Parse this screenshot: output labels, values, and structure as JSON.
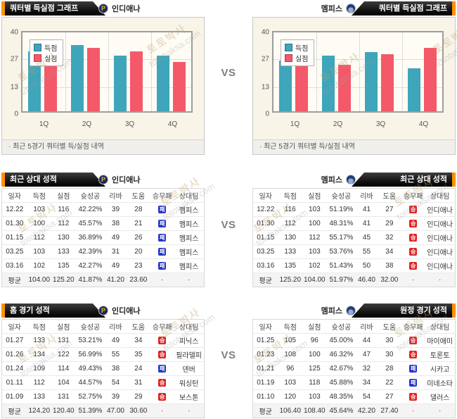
{
  "vs_label": "VS",
  "watermark": {
    "brand": "토토박사",
    "domain": "totobaksa.com"
  },
  "teams": {
    "left": {
      "name": "인디애나",
      "logo_letter": "P"
    },
    "right": {
      "name": "멤피스"
    }
  },
  "sections": {
    "charts": {
      "left_title": "쿼터별 득실점 그래프",
      "right_title": "쿼터별 득실점 그래프"
    },
    "recent": {
      "left_title": "최근 상대 성적",
      "right_title": "최근 상대 성적"
    },
    "homeaway": {
      "left_title": "홈 경기 성적",
      "right_title": "원정 경기 성적"
    }
  },
  "chart_data": [
    {
      "type": "bar",
      "team": "인디애나",
      "title": "쿼터별 득실점 그래프",
      "caption": "· 최근 5경기 쿼터별 득/실점 내역",
      "categories": [
        "1Q",
        "2Q",
        "3Q",
        "4Q"
      ],
      "series": [
        {
          "name": "득점",
          "color": "#3fa5ba",
          "values": [
            29.4,
            32.4,
            27.4,
            27.4
          ]
        },
        {
          "name": "실점",
          "color": "#f4596a",
          "values": [
            31.4,
            31.2,
            29.2,
            24.2
          ]
        }
      ],
      "ylim": [
        0,
        40
      ],
      "yticks": [
        0,
        13,
        27,
        40
      ],
      "grid": true,
      "legend_position": "top-left"
    },
    {
      "type": "bar",
      "team": "멤피스",
      "title": "쿼터별 득실점 그래프",
      "caption": "· 최근 5경기 쿼터별 득/실점 내역",
      "categories": [
        "1Q",
        "2Q",
        "3Q",
        "4Q"
      ],
      "series": [
        {
          "name": "득점",
          "color": "#3fa5ba",
          "values": [
            24.8,
            27.1,
            28.8,
            21.0
          ]
        },
        {
          "name": "실점",
          "color": "#f4596a",
          "values": [
            25.0,
            22.6,
            27.9,
            30.9
          ]
        }
      ],
      "ylim": [
        0,
        40
      ],
      "yticks": [
        0,
        13,
        27,
        40
      ],
      "grid": true,
      "legend_position": "top-left"
    }
  ],
  "tables": {
    "columns": [
      "일자",
      "득점",
      "실점",
      "슛성공",
      "리바",
      "도움",
      "승무패",
      "상대팀"
    ],
    "recent_left": {
      "rows": [
        [
          "12.22",
          "103",
          "116",
          "42.22%",
          "39",
          "28",
          "패",
          "멤피스"
        ],
        [
          "01.30",
          "100",
          "112",
          "45.57%",
          "38",
          "21",
          "패",
          "멤피스"
        ],
        [
          "01.15",
          "112",
          "130",
          "36.89%",
          "49",
          "26",
          "패",
          "멤피스"
        ],
        [
          "03.25",
          "103",
          "133",
          "42.39%",
          "31",
          "20",
          "패",
          "멤피스"
        ],
        [
          "03.16",
          "102",
          "135",
          "42.27%",
          "49",
          "23",
          "패",
          "멤피스"
        ]
      ],
      "avg": [
        "평균",
        "104.00",
        "125.20",
        "41.87%",
        "41.20",
        "23.60",
        "·",
        "·"
      ]
    },
    "recent_right": {
      "rows": [
        [
          "12.22",
          "116",
          "103",
          "51.19%",
          "41",
          "27",
          "승",
          "인디애나"
        ],
        [
          "01.30",
          "112",
          "100",
          "48.31%",
          "41",
          "29",
          "승",
          "인디애나"
        ],
        [
          "01.15",
          "130",
          "112",
          "55.17%",
          "45",
          "32",
          "승",
          "인디애나"
        ],
        [
          "03.25",
          "133",
          "103",
          "53.76%",
          "55",
          "34",
          "승",
          "인디애나"
        ],
        [
          "03.16",
          "135",
          "102",
          "51.43%",
          "50",
          "38",
          "승",
          "인디애나"
        ]
      ],
      "avg": [
        "평균",
        "125.20",
        "104.00",
        "51.97%",
        "46.40",
        "32.00",
        "·",
        "·"
      ]
    },
    "home_left": {
      "rows": [
        [
          "01.27",
          "133",
          "131",
          "53.21%",
          "49",
          "34",
          "승",
          "피닉스"
        ],
        [
          "01.26",
          "134",
          "122",
          "56.99%",
          "55",
          "35",
          "승",
          "필라델피"
        ],
        [
          "01.24",
          "109",
          "114",
          "49.43%",
          "38",
          "24",
          "패",
          "덴버"
        ],
        [
          "01.11",
          "112",
          "104",
          "44.57%",
          "54",
          "31",
          "승",
          "워싱턴"
        ],
        [
          "01.09",
          "133",
          "131",
          "52.75%",
          "39",
          "29",
          "승",
          "보스톤"
        ]
      ],
      "avg": [
        "평균",
        "124.20",
        "120.40",
        "51.39%",
        "47.00",
        "30.60",
        "·",
        "·"
      ]
    },
    "away_right": {
      "rows": [
        [
          "01.25",
          "105",
          "96",
          "45.00%",
          "44",
          "30",
          "승",
          "마이애미"
        ],
        [
          "01.23",
          "108",
          "100",
          "46.32%",
          "47",
          "30",
          "승",
          "토론토"
        ],
        [
          "01.21",
          "96",
          "125",
          "42.67%",
          "32",
          "28",
          "패",
          "시카고"
        ],
        [
          "01.19",
          "103",
          "118",
          "45.88%",
          "34",
          "22",
          "패",
          "미네소타"
        ],
        [
          "01.10",
          "120",
          "103",
          "48.35%",
          "54",
          "27",
          "승",
          "댈러스"
        ]
      ],
      "avg": [
        "평균",
        "106.40",
        "108.40",
        "45.64%",
        "42.20",
        "27.40",
        "·",
        "·"
      ]
    }
  }
}
